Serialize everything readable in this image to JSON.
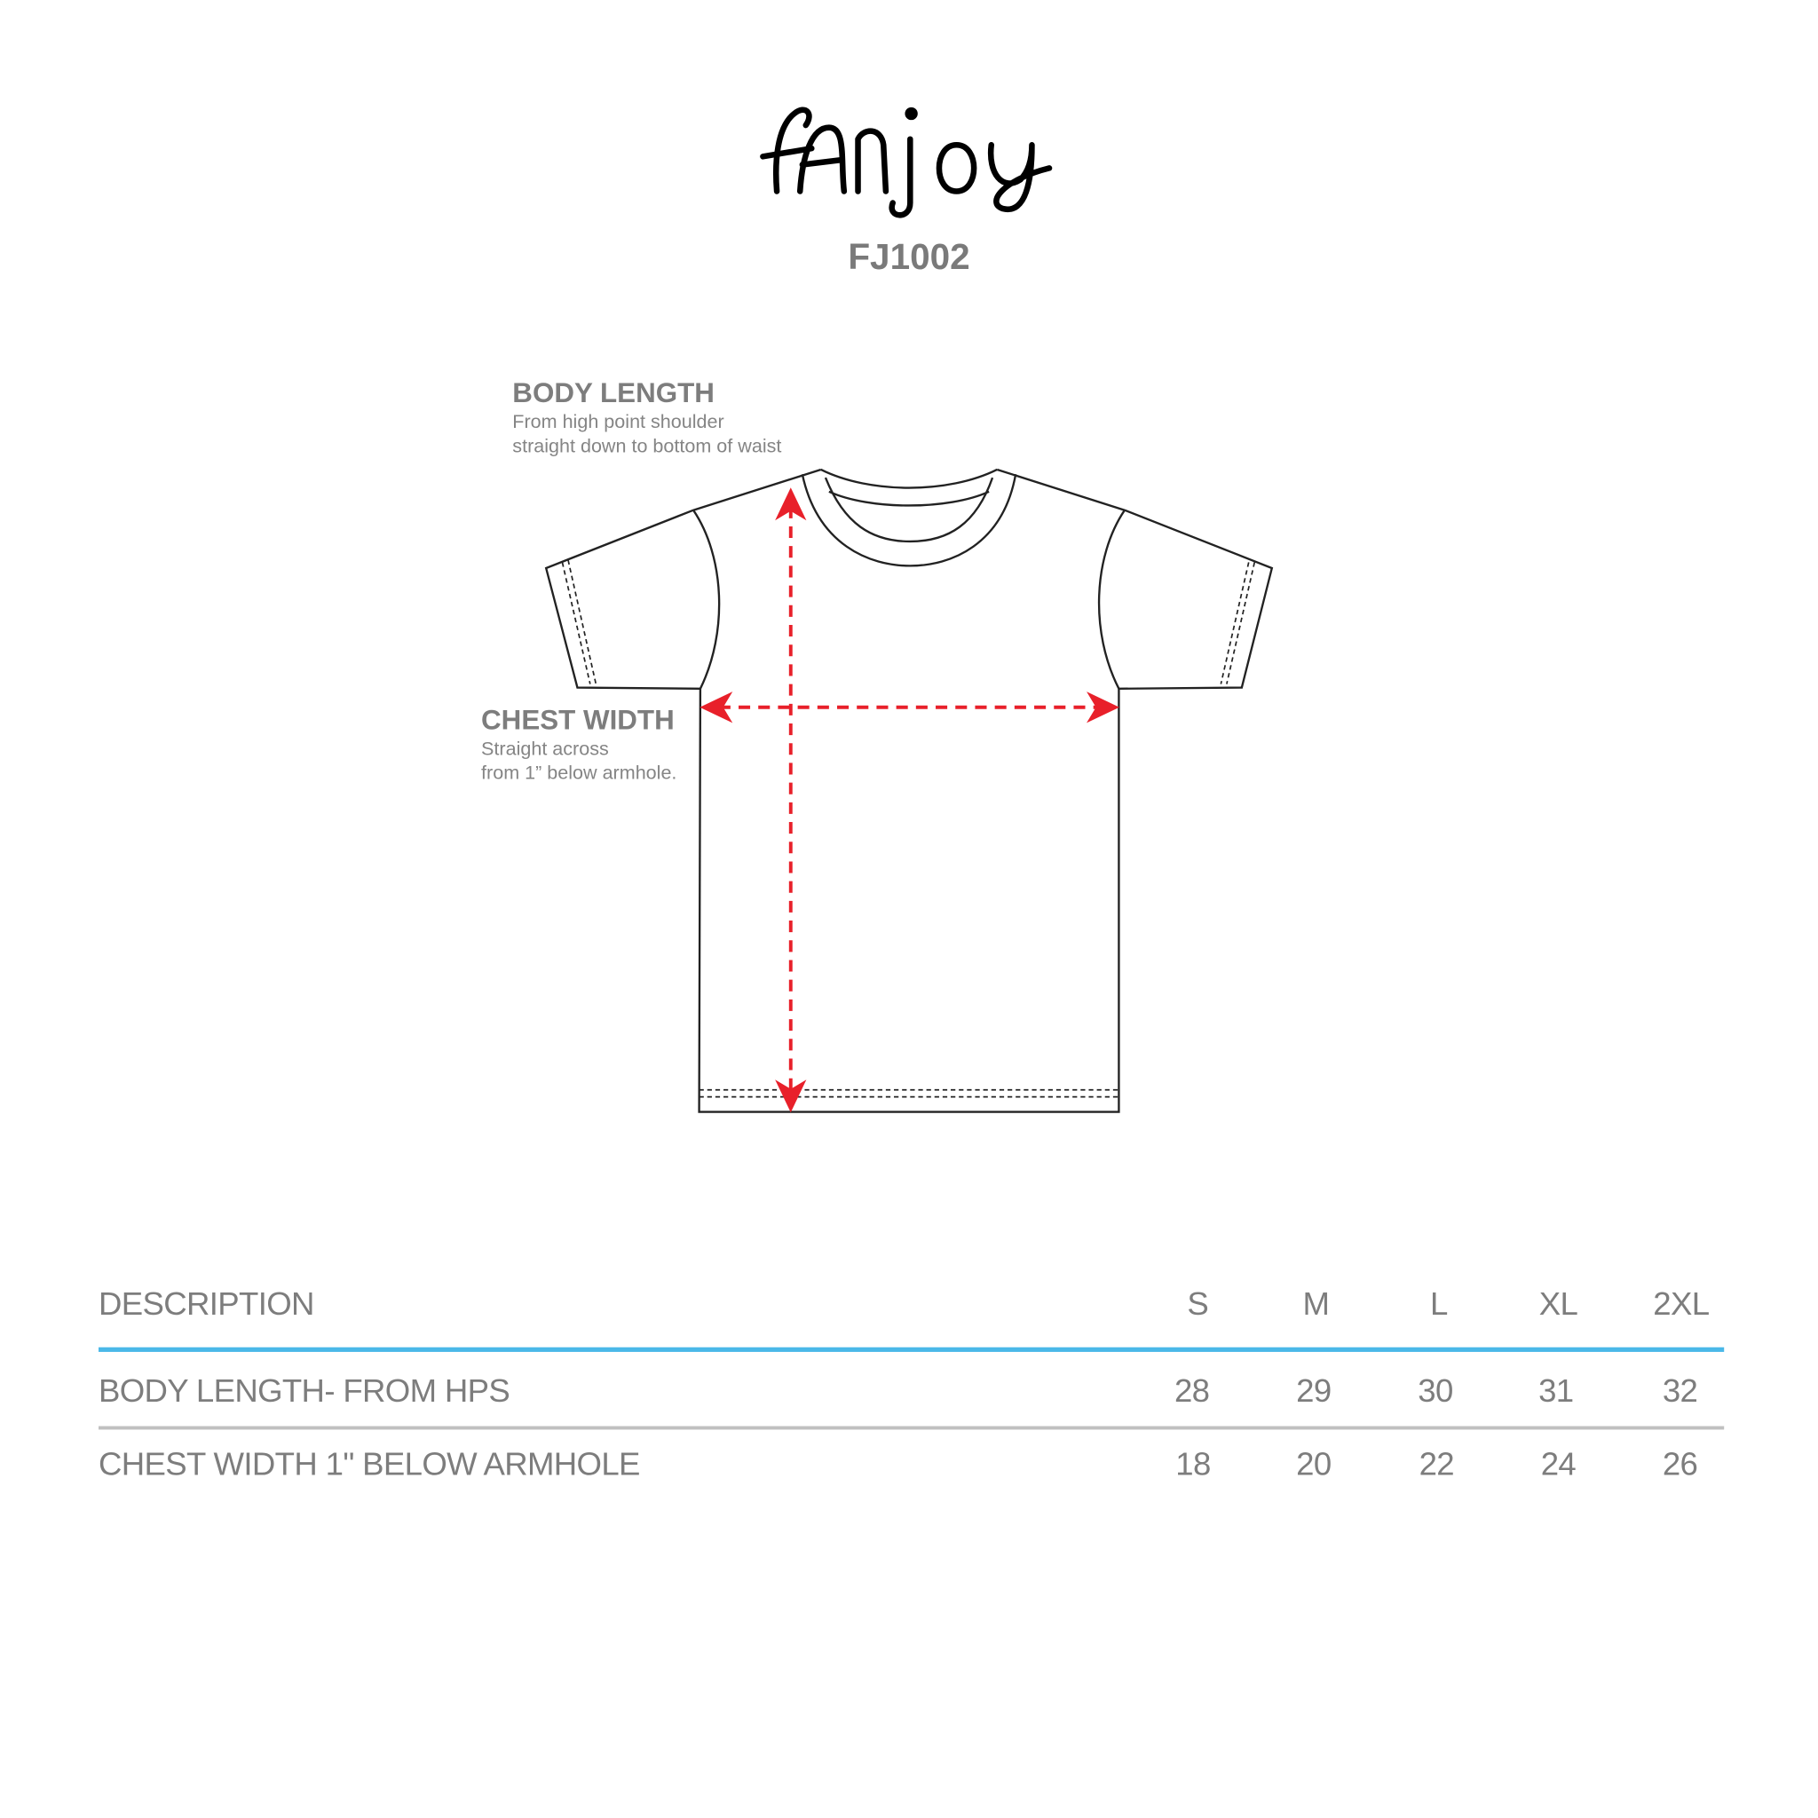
{
  "logo": {
    "text": "fanjoy"
  },
  "product_code": "FJ1002",
  "diagram": {
    "body_length": {
      "title": "BODY LENGTH",
      "line1": "From high point shoulder",
      "line2": "straight down to bottom of waist"
    },
    "chest_width": {
      "title": "CHEST WIDTH",
      "line1": "Straight across",
      "line2": "from 1” below armhole."
    },
    "arrow_color": "#e8202a"
  },
  "table": {
    "header": {
      "description": "DESCRIPTION",
      "sizes": [
        "S",
        "M",
        "L",
        "XL",
        "2XL"
      ]
    },
    "rows": [
      {
        "label": "BODY LENGTH- FROM HPS",
        "values": [
          "28",
          "29",
          "30",
          "31",
          "32"
        ]
      },
      {
        "label": "CHEST WIDTH 1\" BELOW  ARMHOLE",
        "values": [
          "18",
          "20",
          "22",
          "24",
          "26"
        ]
      }
    ],
    "header_rule_color": "#4ab8e8",
    "row_rule_color": "#c0c0c0"
  }
}
